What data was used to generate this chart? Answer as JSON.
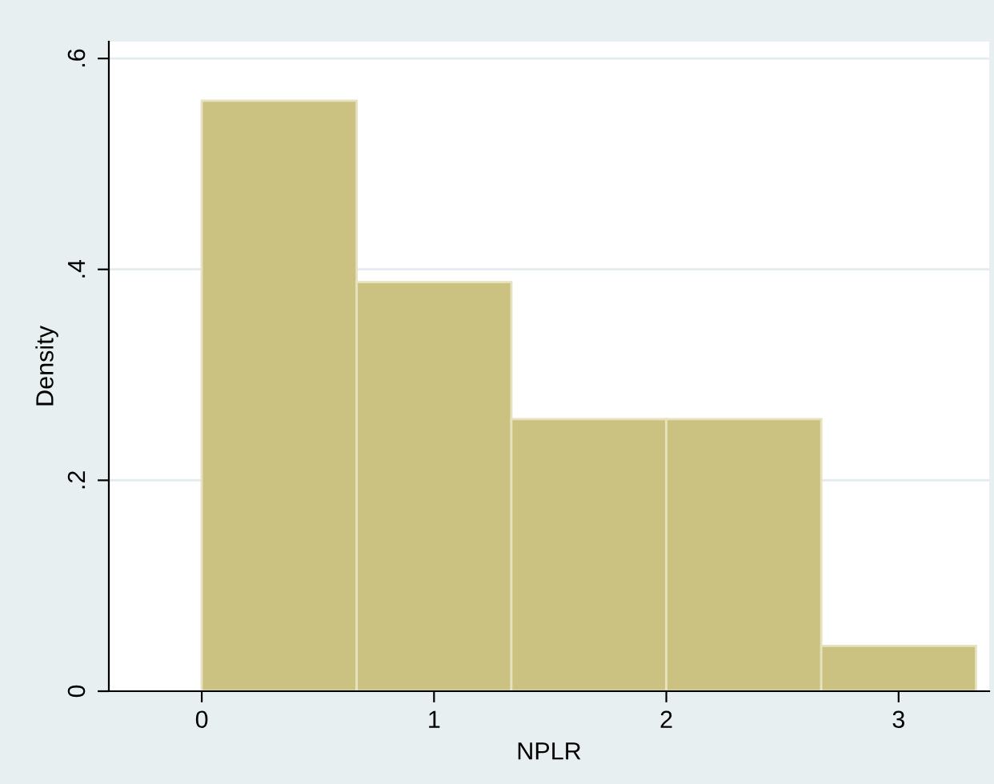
{
  "chart_data": {
    "type": "histogram",
    "xlabel": "NPLR",
    "ylabel": "Density",
    "bins": [
      0,
      0.667,
      1.333,
      2.0,
      2.667,
      3.333
    ],
    "values": [
      0.56,
      0.388,
      0.258,
      0.258,
      0.043
    ],
    "color": "#cbc281",
    "xlim": [
      -0.4,
      3.39
    ],
    "ylim": [
      0,
      0.616
    ],
    "xticks": [
      0,
      1,
      2,
      3
    ],
    "yticks": [
      {
        "value": 0,
        "label": "0"
      },
      {
        "value": 0.2,
        "label": ".2"
      },
      {
        "value": 0.4,
        "label": ".4"
      },
      {
        "value": 0.6,
        "label": ".6"
      }
    ],
    "grid": "y"
  }
}
